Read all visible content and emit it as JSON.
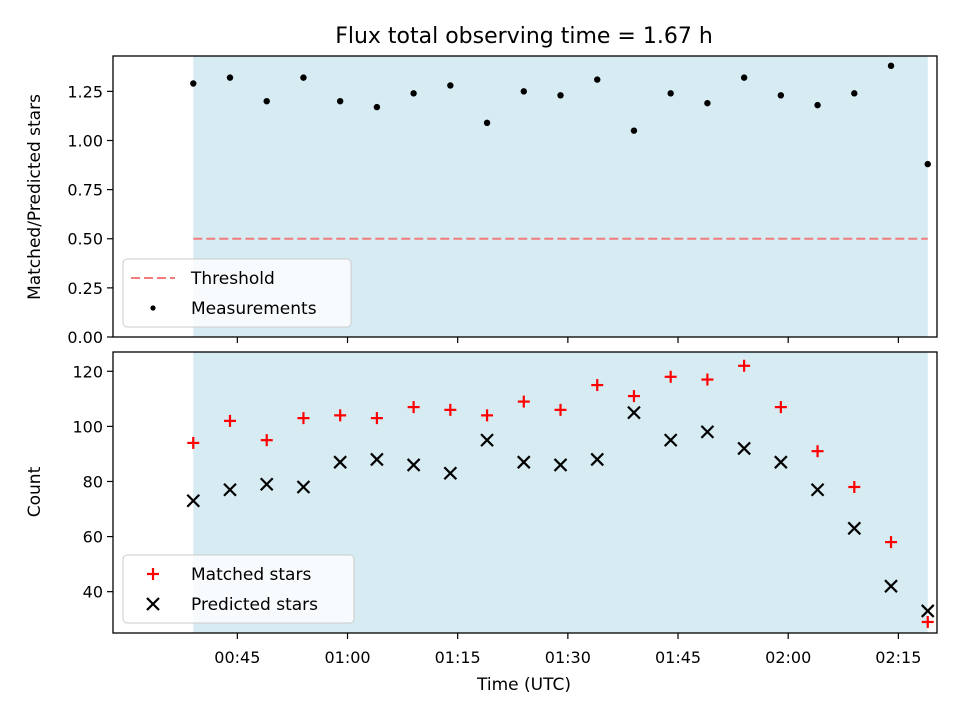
{
  "chart_data": [
    {
      "type": "scatter",
      "title": "Flux total observing time = 1.67 h",
      "xlabel": "",
      "ylabel": "Matched/Predicted stars",
      "ylim": [
        0,
        1.43
      ],
      "x_ticks": [
        "00:45",
        "01:00",
        "01:15",
        "01:30",
        "01:45",
        "02:00",
        "02:15"
      ],
      "y_ticks": [
        "0.00",
        "0.25",
        "0.50",
        "0.75",
        "1.00",
        "1.25"
      ],
      "y_tick_values": [
        0,
        0.25,
        0.5,
        0.75,
        1.0,
        1.25
      ],
      "shaded_span": [
        "00:39",
        "02:19"
      ],
      "threshold": 0.5,
      "times": [
        "00:39",
        "00:44",
        "00:49",
        "00:54",
        "00:59",
        "01:04",
        "01:09",
        "01:14",
        "01:19",
        "01:24",
        "01:29",
        "01:34",
        "01:39",
        "01:44",
        "01:49",
        "01:54",
        "01:59",
        "02:04",
        "02:09",
        "02:14",
        "02:19"
      ],
      "series": [
        {
          "name": "Threshold",
          "style": "dashed-line",
          "color": "#f07c7c",
          "values": [
            0.5,
            0.5
          ]
        },
        {
          "name": "Measurements",
          "style": "dot",
          "color": "#000000",
          "values": [
            1.29,
            1.32,
            1.2,
            1.32,
            1.2,
            1.17,
            1.24,
            1.28,
            1.09,
            1.25,
            1.23,
            1.31,
            1.05,
            1.24,
            1.19,
            1.32,
            1.23,
            1.18,
            1.24,
            1.38,
            0.88
          ]
        }
      ],
      "legend": "lower-left"
    },
    {
      "type": "scatter",
      "title": "",
      "xlabel": "Time (UTC)",
      "ylabel": "Count",
      "ylim": [
        25,
        127
      ],
      "x_ticks": [
        "00:45",
        "01:00",
        "01:15",
        "01:30",
        "01:45",
        "02:00",
        "02:15"
      ],
      "y_ticks": [
        "40",
        "60",
        "80",
        "100",
        "120"
      ],
      "y_tick_values": [
        40,
        60,
        80,
        100,
        120
      ],
      "shaded_span": [
        "00:39",
        "02:19"
      ],
      "times": [
        "00:39",
        "00:44",
        "00:49",
        "00:54",
        "00:59",
        "01:04",
        "01:09",
        "01:14",
        "01:19",
        "01:24",
        "01:29",
        "01:34",
        "01:39",
        "01:44",
        "01:49",
        "01:54",
        "01:59",
        "02:04",
        "02:09",
        "02:14",
        "02:19"
      ],
      "series": [
        {
          "name": "Matched stars",
          "style": "plus",
          "color": "#ff0000",
          "values": [
            94,
            102,
            95,
            103,
            104,
            103,
            107,
            106,
            104,
            109,
            106,
            115,
            111,
            118,
            117,
            122,
            107,
            91,
            78,
            58,
            29
          ]
        },
        {
          "name": "Predicted stars",
          "style": "x",
          "color": "#000000",
          "values": [
            73,
            77,
            79,
            78,
            87,
            88,
            86,
            83,
            95,
            87,
            86,
            88,
            105,
            95,
            98,
            92,
            87,
            77,
            63,
            42,
            33
          ]
        }
      ],
      "legend": "lower-left"
    }
  ],
  "colors": {
    "shade": "#add8e6",
    "threshold": "#f07c7c",
    "matched": "#ff0000",
    "predicted": "#000000"
  }
}
